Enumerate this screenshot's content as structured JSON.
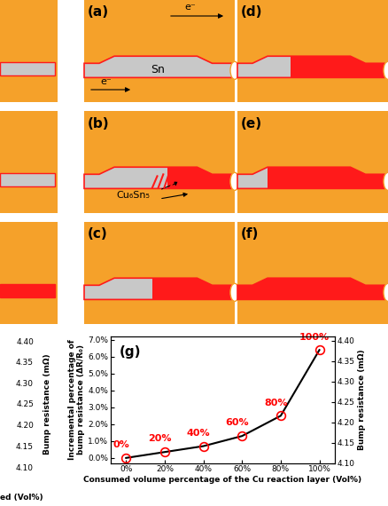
{
  "diagram": {
    "panel_labels": [
      "(a)",
      "(b)",
      "(c)",
      "(d)",
      "(e)",
      "(f)"
    ],
    "solder_label": "Sn",
    "imc_label": "Cu₆Sn₅",
    "electron_label": "e⁻"
  },
  "left_fragment": {
    "yticks": [
      "4.40",
      "4.35",
      "4.30",
      "4.25",
      "4.20",
      "4.15",
      "4.10"
    ],
    "ylabel": "Bump resistance (mΩ)",
    "xlabel": "ed (Vol%)"
  },
  "chart_data": {
    "type": "line",
    "panel_label": "(g)",
    "x": [
      0,
      20,
      40,
      60,
      80,
      100
    ],
    "values": [
      0.0,
      0.35,
      0.7,
      1.3,
      2.5,
      6.4
    ],
    "point_labels": [
      "0%",
      "20%",
      "40%",
      "60%",
      "80%",
      "100%"
    ],
    "color": "#ff0000",
    "marker": "o",
    "xlabel": "Consumed volume percentage of the Cu reaction layer (Vol%)",
    "ylabel": "Incremental percentage of\nbump resistance (ΔR/R₀)",
    "y2label": "Bump resistance (mΩ)",
    "xlim": [
      -8,
      108
    ],
    "xticks": [
      {
        "value": 0,
        "label": "0%"
      },
      {
        "value": 20,
        "label": "20%"
      },
      {
        "value": 40,
        "label": "40%"
      },
      {
        "value": 60,
        "label": "60%"
      },
      {
        "value": 80,
        "label": "80%"
      },
      {
        "value": 100,
        "label": "100%"
      }
    ],
    "ylim": [
      -0.3,
      7.2
    ],
    "yticks": [
      {
        "value": 0,
        "label": "0.0%"
      },
      {
        "value": 1,
        "label": "1.0%"
      },
      {
        "value": 2,
        "label": "2.0%"
      },
      {
        "value": 3,
        "label": "3.0%"
      },
      {
        "value": 4,
        "label": "4.0%"
      },
      {
        "value": 5,
        "label": "5.0%"
      },
      {
        "value": 6,
        "label": "6.0%"
      },
      {
        "value": 7,
        "label": "7.0%"
      }
    ],
    "y2lim": [
      4.1,
      4.41
    ],
    "y2ticks": [
      {
        "value": 4.1,
        "label": "4.10"
      },
      {
        "value": 4.15,
        "label": "4.15"
      },
      {
        "value": 4.2,
        "label": "4.20"
      },
      {
        "value": 4.25,
        "label": "4.25"
      },
      {
        "value": 4.3,
        "label": "4.30"
      },
      {
        "value": 4.35,
        "label": "4.35"
      },
      {
        "value": 4.4,
        "label": "4.40"
      }
    ],
    "grid": false
  }
}
